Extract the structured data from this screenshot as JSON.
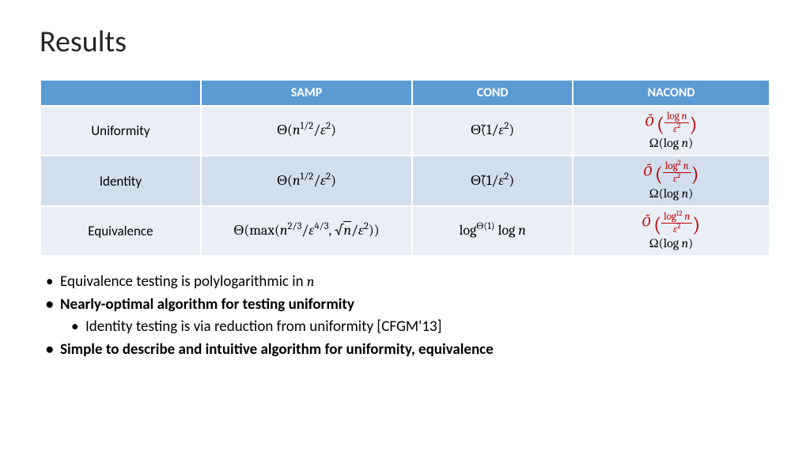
{
  "title": "Results",
  "table": {
    "header_bg": "#5b9bd5",
    "header_fg": "#ffffff",
    "row_odd_bg": "#eaeff7",
    "row_even_bg": "#d2deee",
    "columns": [
      "",
      "SAMP",
      "COND",
      "NACOND"
    ],
    "column_widths": [
      "22%",
      "29%",
      "22%",
      "27%"
    ],
    "rows": [
      {
        "label": "Uniformity",
        "samp_html": "Θ(<span class='it'>n</span><sup>1/2</sup>/<span class='it'>ε</span><sup>2</sup>)",
        "cond_html": "Θ̃(1/<span class='it'>ε</span><sup>2</sup>)",
        "nacond_top_html": "<span class='it'>Õ</span> <span class='bigp'>(</span><span class='frac'><span class='num'>log <span class='it'>n</span></span><span class='den'><span class='it'>ε</span><sup>2</sup></span></span><span class='bigp'>)</span>",
        "nacond_bot_html": "Ω(log <span class='it'>n</span>)"
      },
      {
        "label": "Identity",
        "samp_html": "Θ(<span class='it'>n</span><sup>1/2</sup>/<span class='it'>ε</span><sup>2</sup>)",
        "cond_html": "Θ̃(1/<span class='it'>ε</span><sup>2</sup>)",
        "nacond_top_html": "<span class='it'>Õ</span> <span class='bigp'>(</span><span class='frac'><span class='num'>log<sup>2</sup> <span class='it'>n</span></span><span class='den'><span class='it'>ε</span><sup>2</sup></span></span><span class='bigp'>)</span>",
        "nacond_bot_html": "Ω(log <span class='it'>n</span>)"
      },
      {
        "label": "Equivalence",
        "samp_html": "Θ(max(<span class='it'>n</span><sup>2/3</sup>/<span class='it'>ε</span><sup>4/3</sup>, √<span style='border-top:1px solid #000;'><span class='it'>n</span></span>/<span class='it'>ε</span><sup>2</sup>))",
        "cond_html": "log<sup>Θ(1)</sup> log <span class='it'>n</span>",
        "nacond_top_html": "<span class='it'>Õ</span> <span class='bigp'>(</span><span class='frac'><span class='num'>log<sup>12</sup> <span class='it'>n</span></span><span class='den'><span class='it'>ε</span><sup>2</sup></span></span><span class='bigp'>)</span>",
        "nacond_bot_html": "Ω(log <span class='it'>n</span>)"
      }
    ]
  },
  "bullets": [
    {
      "level": 0,
      "bold": false,
      "html": "Equivalence testing is polylogarithmic in <span class='math it'>n</span>"
    },
    {
      "level": 0,
      "bold": true,
      "html": "Nearly-optimal algorithm for testing uniformity"
    },
    {
      "level": 1,
      "bold": false,
      "html": "Identity testing is via reduction from uniformity [CFGM'13]"
    },
    {
      "level": 0,
      "bold": true,
      "html": "Simple to describe and intuitive algorithm for uniformity, equivalence"
    }
  ],
  "colors": {
    "nacond_highlight": "#c00000",
    "title_color": "#262626"
  },
  "fontsize": {
    "title": 38,
    "header": 16,
    "body": 18,
    "bullets": 19
  }
}
